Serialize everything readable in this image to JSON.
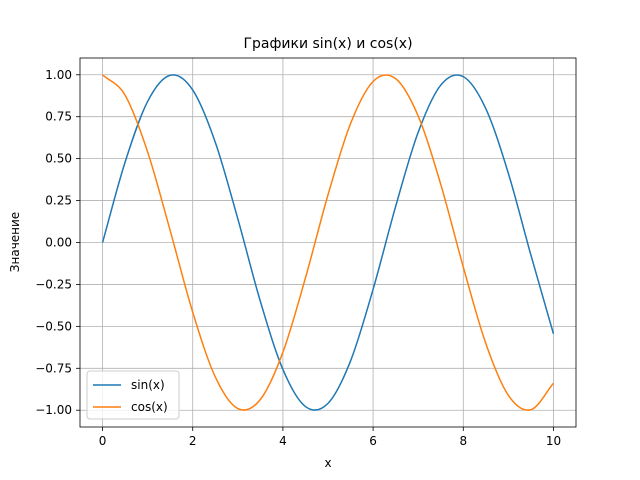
{
  "chart_data": {
    "type": "line",
    "title": "Графики sin(x) и cos(x)",
    "xlabel": "x",
    "ylabel": "Значение",
    "xlim": [
      -0.5,
      10.5
    ],
    "ylim": [
      -1.1,
      1.1
    ],
    "grid": true,
    "legend_position": "lower-left",
    "x_ticks": [
      0,
      2,
      4,
      6,
      8,
      10
    ],
    "x_tick_labels": [
      "0",
      "2",
      "4",
      "6",
      "8",
      "10"
    ],
    "y_ticks": [
      -1.0,
      -0.75,
      -0.5,
      -0.25,
      0.0,
      0.25,
      0.5,
      0.75,
      1.0
    ],
    "y_tick_labels": [
      "−1.00",
      "−0.75",
      "−0.50",
      "−0.25",
      "0.00",
      "0.25",
      "0.50",
      "0.75",
      "1.00"
    ],
    "x": [
      0,
      0.5,
      1,
      1.5,
      2,
      2.5,
      3,
      3.5,
      4,
      4.5,
      5,
      5.5,
      6,
      6.5,
      7,
      7.5,
      8,
      8.5,
      9,
      9.5,
      10
    ],
    "series": [
      {
        "name": "sin(x)",
        "color": "#1f77b4",
        "values": [
          0.0,
          0.479,
          0.841,
          0.997,
          0.909,
          0.598,
          0.141,
          -0.351,
          -0.757,
          -0.978,
          -0.959,
          -0.706,
          -0.279,
          0.215,
          0.657,
          0.938,
          0.989,
          0.798,
          0.412,
          -0.075,
          -0.544
        ]
      },
      {
        "name": "cos(x)",
        "color": "#ff7f0e",
        "values": [
          1.0,
          0.878,
          0.54,
          0.071,
          -0.416,
          -0.801,
          -0.99,
          -0.936,
          -0.654,
          -0.211,
          0.284,
          0.709,
          0.96,
          0.977,
          0.754,
          0.347,
          -0.146,
          -0.602,
          -0.911,
          -0.997,
          -0.839
        ]
      }
    ]
  }
}
